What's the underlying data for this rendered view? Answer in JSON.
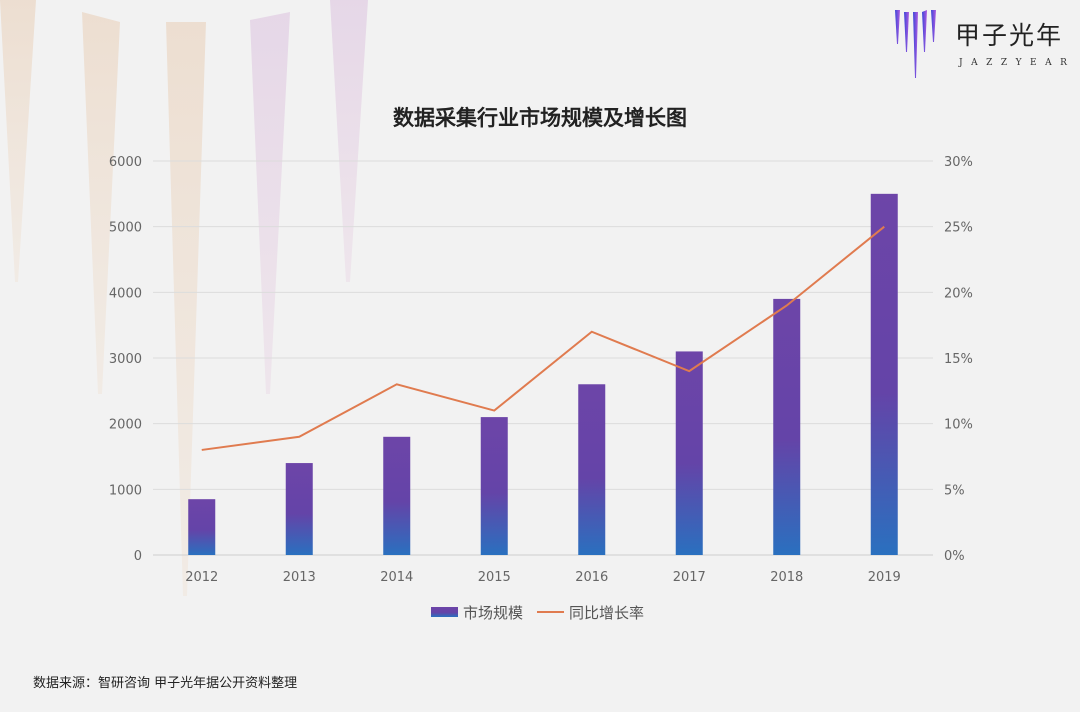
{
  "chart_data": {
    "type": "bar",
    "title": "数据采集行业市场规模及增长图",
    "categories": [
      "2012",
      "2013",
      "2014",
      "2015",
      "2016",
      "2017",
      "2018",
      "2019"
    ],
    "series": [
      {
        "name": "市场规模",
        "type": "bar",
        "axis": "left",
        "values": [
          850,
          1400,
          1800,
          2100,
          2600,
          3100,
          3900,
          5500
        ]
      },
      {
        "name": "同比增长率",
        "type": "line",
        "axis": "right",
        "values": [
          8,
          9,
          13,
          11,
          17,
          14,
          19,
          25
        ]
      }
    ],
    "y_left": {
      "range": [
        0,
        6000
      ],
      "ticks": [
        "0",
        "1000",
        "2000",
        "3000",
        "4000",
        "5000",
        "6000"
      ]
    },
    "y_right": {
      "range": [
        0,
        30
      ],
      "ticks": [
        "0%",
        "5%",
        "10%",
        "15%",
        "20%",
        "25%",
        "30%"
      ]
    },
    "grid": true,
    "legend_position": "bottom",
    "colors": {
      "bar_top": "#6d45a8",
      "bar_bottom": "#2a70bf",
      "line": "#e07b4f",
      "grid": "#dcdcdc"
    }
  },
  "logo": {
    "cn": "甲子光年",
    "en": "JAZZYEAR"
  },
  "source": "数据来源：智研咨询 甲子光年据公开资料整理"
}
